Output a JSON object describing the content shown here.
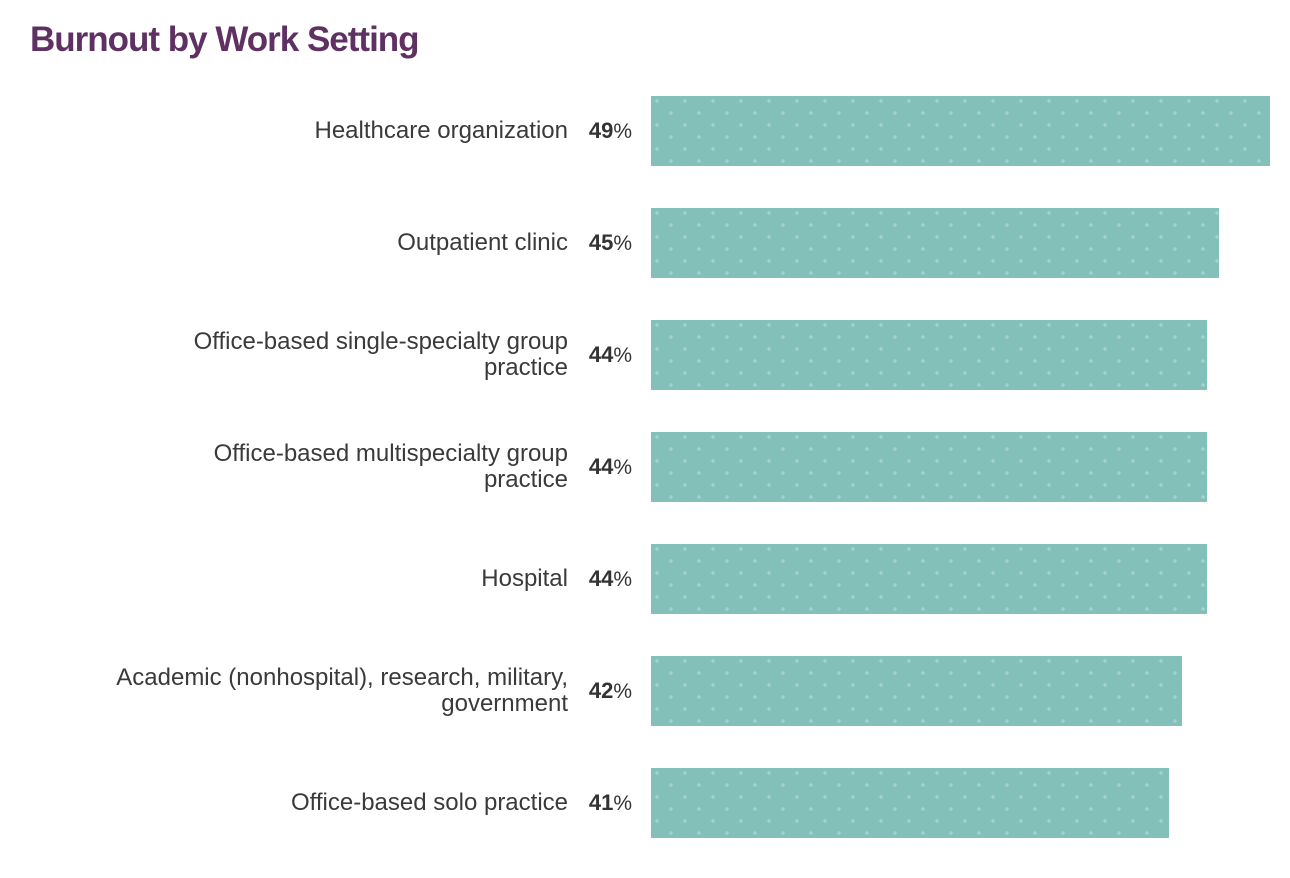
{
  "page": {
    "background_color": "#ffffff"
  },
  "chart_data": {
    "type": "bar",
    "orientation": "horizontal",
    "title": "Burnout by Work Setting",
    "categories": [
      "Healthcare organization",
      "Outpatient clinic",
      "Office-based single-specialty group\npractice",
      "Office-based multispecialty group\npractice",
      "Hospital",
      "Academic (nonhospital), research, military,\ngovernment",
      "Office-based solo practice"
    ],
    "values": [
      49,
      45,
      44,
      44,
      44,
      42,
      41
    ],
    "unit": "%",
    "xlabel": "",
    "ylabel": "",
    "xlim": [
      0,
      49
    ],
    "grid": "off",
    "legend": "none",
    "axes_visible": false,
    "value_label_position": "left-of-bar",
    "bar_color": "#84c0ba",
    "bar_dot_color": "#a7d2cc",
    "title_color": "#5f3163",
    "label_color": "#3a3a3a",
    "value_color": "#333333"
  }
}
